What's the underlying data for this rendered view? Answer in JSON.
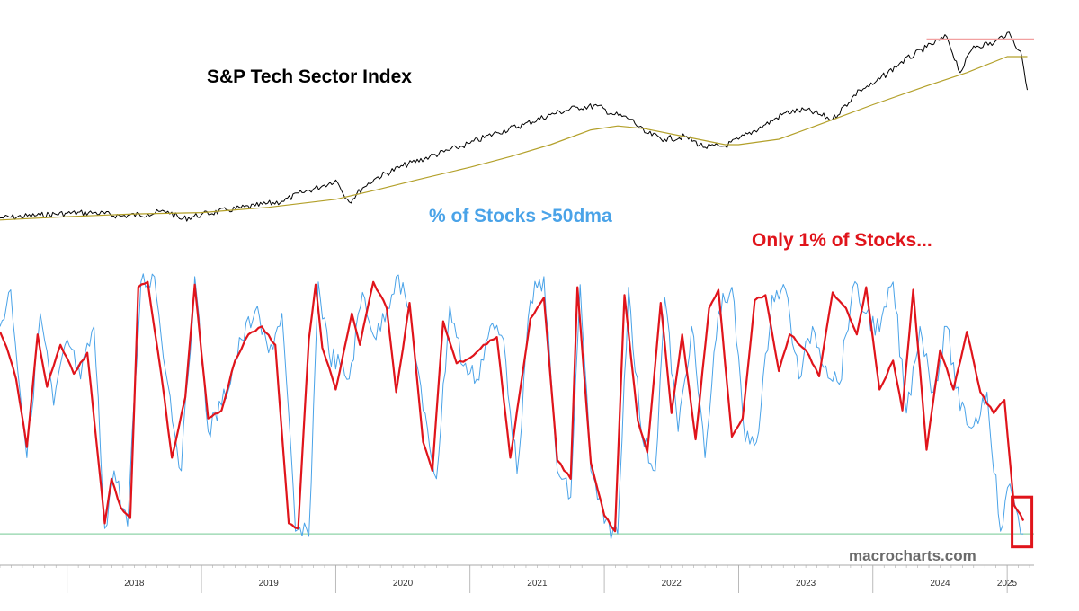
{
  "chart_data": [
    {
      "type": "line",
      "title": "S&P Tech Sector Index",
      "series": [
        {
          "color": "#000000",
          "x": [
            2017.5,
            2017.8,
            2018.0,
            2018.2,
            2018.4,
            2018.6,
            2018.75,
            2018.85,
            2019.0,
            2019.2,
            2019.4,
            2019.6,
            2019.75,
            2019.9,
            2020.0,
            2020.1,
            2020.2,
            2020.3,
            2020.5,
            2020.7,
            2020.9,
            2021.0,
            2021.2,
            2021.4,
            2021.6,
            2021.8,
            2021.95,
            2022.05,
            2022.2,
            2022.3,
            2022.45,
            2022.6,
            2022.75,
            2022.9,
            2023.0,
            2023.2,
            2023.35,
            2023.5,
            2023.7,
            2023.9,
            2024.0,
            2024.2,
            2024.4,
            2024.55,
            2024.65,
            2024.75,
            2024.9,
            2025.0,
            2025.1,
            2025.15
          ],
          "values": [
            100,
            104,
            107,
            108,
            103,
            106,
            110,
            98,
            105,
            112,
            118,
            125,
            138,
            148,
            157,
            124,
            145,
            160,
            178,
            192,
            205,
            212,
            228,
            240,
            255,
            266,
            268,
            257,
            248,
            228,
            218,
            222,
            206,
            208,
            218,
            240,
            258,
            262,
            248,
            292,
            300,
            332,
            356,
            372,
            318,
            358,
            362,
            378,
            350,
            292
          ]
        },
        {
          "color": "#b3a02a",
          "x": [
            2017.5,
            2018.0,
            2018.5,
            2019.0,
            2019.5,
            2020.0,
            2020.3,
            2020.6,
            2021.0,
            2021.3,
            2021.6,
            2021.9,
            2022.1,
            2022.3,
            2022.6,
            2022.9,
            2023.0,
            2023.3,
            2023.6,
            2024.0,
            2024.4,
            2024.7,
            2025.0,
            2025.15
          ],
          "values": [
            97,
            102,
            106,
            108,
            116,
            128,
            142,
            157,
            176,
            192,
            210,
            232,
            238,
            234,
            222,
            210,
            210,
            218,
            240,
            270,
            298,
            318,
            342,
            342
          ]
        },
        {
          "color": "#f2a0a0",
          "x": [
            2024.4,
            2025.2
          ],
          "values": [
            368,
            368
          ]
        }
      ]
    },
    {
      "type": "line",
      "title": "% of Stocks >50dma",
      "ylim": [
        0,
        100
      ],
      "series": [
        {
          "color": "#e0141b",
          "x": [
            2017.5,
            2017.55,
            2017.62,
            2017.7,
            2017.78,
            2017.85,
            2017.95,
            2018.05,
            2018.15,
            2018.28,
            2018.33,
            2018.4,
            2018.47,
            2018.53,
            2018.6,
            2018.7,
            2018.78,
            2018.88,
            2018.95,
            2019.05,
            2019.15,
            2019.25,
            2019.35,
            2019.45,
            2019.55,
            2019.65,
            2019.72,
            2019.8,
            2019.85,
            2019.9,
            2020.0,
            2020.12,
            2020.18,
            2020.28,
            2020.38,
            2020.45,
            2020.55,
            2020.65,
            2020.72,
            2020.8,
            2020.9,
            2021.0,
            2021.1,
            2021.2,
            2021.3,
            2021.45,
            2021.55,
            2021.65,
            2021.75,
            2021.8,
            2021.9,
            2022.0,
            2022.08,
            2022.15,
            2022.25,
            2022.32,
            2022.42,
            2022.5,
            2022.58,
            2022.68,
            2022.78,
            2022.85,
            2022.95,
            2023.03,
            2023.12,
            2023.2,
            2023.3,
            2023.38,
            2023.5,
            2023.6,
            2023.7,
            2023.8,
            2023.88,
            2023.95,
            2024.05,
            2024.15,
            2024.22,
            2024.3,
            2024.4,
            2024.5,
            2024.6,
            2024.7,
            2024.8,
            2024.9,
            2024.98,
            2025.05,
            2025.12
          ],
          "values": [
            78,
            72,
            60,
            34,
            77,
            57,
            73,
            62,
            70,
            5,
            22,
            11,
            7,
            95,
            97,
            62,
            30,
            53,
            96,
            45,
            48,
            67,
            77,
            80,
            73,
            5,
            3,
            75,
            96,
            72,
            56,
            85,
            73,
            97,
            87,
            55,
            89,
            36,
            25,
            82,
            66,
            68,
            73,
            76,
            30,
            83,
            91,
            29,
            22,
            95,
            28,
            8,
            2,
            92,
            44,
            32,
            89,
            47,
            77,
            37,
            87,
            94,
            38,
            45,
            90,
            92,
            63,
            77,
            71,
            61,
            93,
            87,
            77,
            95,
            56,
            67,
            48,
            94,
            33,
            71,
            56,
            78,
            55,
            47,
            52,
            12,
            6
          ]
        },
        {
          "color": "#4aa3e8",
          "x": [
            2017.5,
            2017.58,
            2017.7,
            2017.8,
            2017.9,
            2018.0,
            2018.1,
            2018.2,
            2018.28,
            2018.35,
            2018.45,
            2018.55,
            2018.65,
            2018.75,
            2018.85,
            2018.95,
            2019.05,
            2019.15,
            2019.3,
            2019.4,
            2019.5,
            2019.6,
            2019.7,
            2019.8,
            2019.87,
            2019.95,
            2020.1,
            2020.2,
            2020.3,
            2020.45,
            2020.55,
            2020.65,
            2020.75,
            2020.85,
            2020.95,
            2021.05,
            2021.15,
            2021.25,
            2021.35,
            2021.45,
            2021.55,
            2021.65,
            2021.75,
            2021.82,
            2021.9,
            2022.0,
            2022.1,
            2022.18,
            2022.28,
            2022.38,
            2022.45,
            2022.55,
            2022.65,
            2022.75,
            2022.85,
            2022.95,
            2023.05,
            2023.15,
            2023.25,
            2023.35,
            2023.45,
            2023.55,
            2023.65,
            2023.75,
            2023.85,
            2023.95,
            2024.05,
            2024.15,
            2024.25,
            2024.35,
            2024.45,
            2024.55,
            2024.65,
            2024.75,
            2024.85,
            2024.95,
            2025.02,
            2025.08,
            2025.12
          ],
          "values": [
            80,
            94,
            30,
            85,
            50,
            75,
            60,
            80,
            3,
            25,
            4,
            97,
            99,
            58,
            25,
            99,
            40,
            50,
            75,
            86,
            70,
            85,
            2,
            0,
            97,
            70,
            60,
            93,
            75,
            99,
            86,
            48,
            22,
            88,
            65,
            60,
            80,
            75,
            24,
            90,
            99,
            25,
            15,
            96,
            25,
            5,
            1,
            95,
            38,
            25,
            91,
            40,
            80,
            30,
            86,
            95,
            36,
            40,
            92,
            94,
            60,
            80,
            65,
            58,
            95,
            85,
            78,
            97,
            47,
            80,
            55,
            80,
            48,
            42,
            55,
            2,
            20,
            8,
            1
          ]
        },
        {
          "color": "#8fd4a8",
          "x": [
            2017.5,
            2025.2
          ],
          "values": [
            1,
            1
          ]
        }
      ]
    }
  ],
  "axis": {
    "years": [
      "2018",
      "2019",
      "2020",
      "2021",
      "2022",
      "2023",
      "2024",
      "2025"
    ]
  },
  "labels": {
    "top_title": "S&P Tech Sector Index",
    "bottom_title": "% of Stocks >50dma",
    "annotation": "Only 1% of Stocks...",
    "credit": "macrocharts.com"
  },
  "colors": {
    "price": "#000000",
    "moving_average": "#b3a02a",
    "peak_line": "#f2a0a0",
    "breadth_fast": "#4aa3e8",
    "breadth_smooth": "#e0141b",
    "baseline": "#8fd4a8",
    "highlight_box": "#e0141b",
    "axis": "#aaaaaa"
  }
}
